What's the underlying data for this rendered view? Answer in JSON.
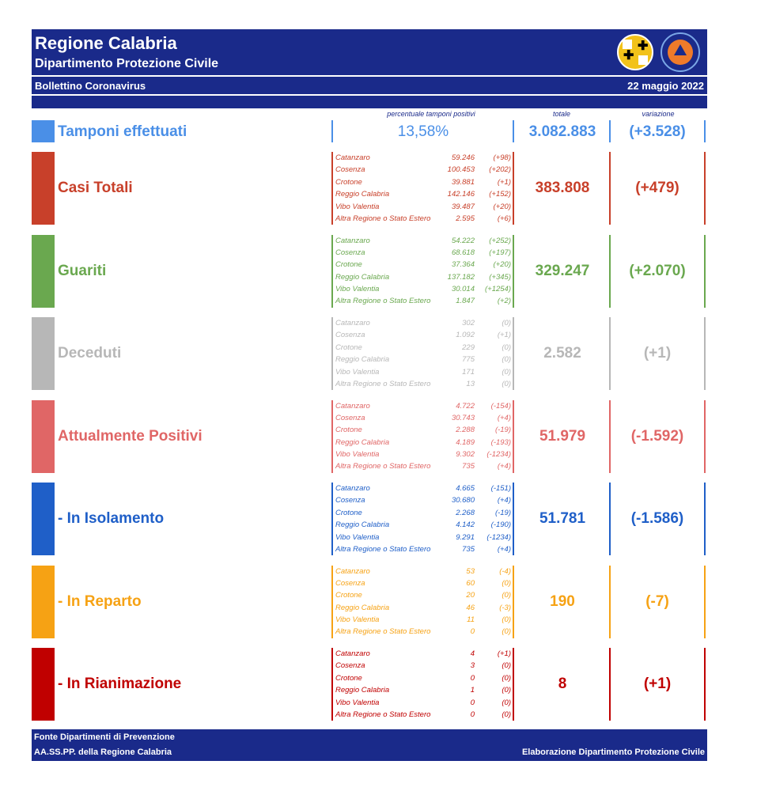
{
  "header": {
    "title": "Regione Calabria",
    "subtitle": "Dipartimento Protezione Civile",
    "bulletin": "Bollettino Coronavirus",
    "date": "22 maggio 2022"
  },
  "columns": {
    "percent": "percentuale tamponi positivi",
    "total": "totale",
    "variation": "variazione"
  },
  "colors": {
    "brand": "#1a2a8a",
    "tamponi": "#4a8fe7",
    "casi": "#c8402a",
    "guariti": "#6aa84f",
    "deceduti": "#b7b7b7",
    "positivi": "#e06666",
    "isolamento": "#1f5fc8",
    "reparto": "#f6a214",
    "rianimazione": "#c00000"
  },
  "tamponi": {
    "label": "Tamponi effettuati",
    "percent": "13,58%",
    "total": "3.082.883",
    "variation": "(+3.528)"
  },
  "sections": [
    {
      "label": "Casi Totali",
      "total": "383.808",
      "variation": "(+479)",
      "rows": [
        {
          "name": "Catanzaro",
          "value": "59.246",
          "delta": "(+98)"
        },
        {
          "name": "Cosenza",
          "value": "100.453",
          "delta": "(+202)"
        },
        {
          "name": "Crotone",
          "value": "39.881",
          "delta": "(+1)"
        },
        {
          "name": "Reggio Calabria",
          "value": "142.146",
          "delta": "(+152)"
        },
        {
          "name": "Vibo Valentia",
          "value": "39.487",
          "delta": "(+20)"
        },
        {
          "name": "Altra Regione o Stato Estero",
          "value": "2.595",
          "delta": "(+6)"
        }
      ]
    },
    {
      "label": "Guariti",
      "total": "329.247",
      "variation": "(+2.070)",
      "rows": [
        {
          "name": "Catanzaro",
          "value": "54.222",
          "delta": "(+252)"
        },
        {
          "name": "Cosenza",
          "value": "68.618",
          "delta": "(+197)"
        },
        {
          "name": "Crotone",
          "value": "37.364",
          "delta": "(+20)"
        },
        {
          "name": "Reggio Calabria",
          "value": "137.182",
          "delta": "(+345)"
        },
        {
          "name": "Vibo Valentia",
          "value": "30.014",
          "delta": "(+1254)"
        },
        {
          "name": "Altra Regione o Stato Estero",
          "value": "1.847",
          "delta": "(+2)"
        }
      ]
    },
    {
      "label": "Deceduti",
      "total": "2.582",
      "variation": "(+1)",
      "rows": [
        {
          "name": "Catanzaro",
          "value": "302",
          "delta": "(0)"
        },
        {
          "name": "Cosenza",
          "value": "1.092",
          "delta": "(+1)"
        },
        {
          "name": "Crotone",
          "value": "229",
          "delta": "(0)"
        },
        {
          "name": "Reggio Calabria",
          "value": "775",
          "delta": "(0)"
        },
        {
          "name": "Vibo Valentia",
          "value": "171",
          "delta": "(0)"
        },
        {
          "name": "Altra Regione o Stato Estero",
          "value": "13",
          "delta": "(0)"
        }
      ]
    },
    {
      "label": "Attualmente Positivi",
      "total": "51.979",
      "variation": "(-1.592)",
      "rows": [
        {
          "name": "Catanzaro",
          "value": "4.722",
          "delta": "(-154)"
        },
        {
          "name": "Cosenza",
          "value": "30.743",
          "delta": "(+4)"
        },
        {
          "name": "Crotone",
          "value": "2.288",
          "delta": "(-19)"
        },
        {
          "name": "Reggio Calabria",
          "value": "4.189",
          "delta": "(-193)"
        },
        {
          "name": "Vibo Valentia",
          "value": "9.302",
          "delta": "(-1234)"
        },
        {
          "name": "Altra Regione o Stato Estero",
          "value": "735",
          "delta": "(+4)"
        }
      ]
    },
    {
      "label": "- In Isolamento",
      "total": "51.781",
      "variation": "(-1.586)",
      "rows": [
        {
          "name": "Catanzaro",
          "value": "4.665",
          "delta": "(-151)"
        },
        {
          "name": "Cosenza",
          "value": "30.680",
          "delta": "(+4)"
        },
        {
          "name": "Crotone",
          "value": "2.268",
          "delta": "(-19)"
        },
        {
          "name": "Reggio Calabria",
          "value": "4.142",
          "delta": "(-190)"
        },
        {
          "name": "Vibo Valentia",
          "value": "9.291",
          "delta": "(-1234)"
        },
        {
          "name": "Altra Regione o Stato Estero",
          "value": "735",
          "delta": "(+4)"
        }
      ]
    },
    {
      "label": "- In Reparto",
      "total": "190",
      "variation": "(-7)",
      "rows": [
        {
          "name": "Catanzaro",
          "value": "53",
          "delta": "(-4)"
        },
        {
          "name": "Cosenza",
          "value": "60",
          "delta": "(0)"
        },
        {
          "name": "Crotone",
          "value": "20",
          "delta": "(0)"
        },
        {
          "name": "Reggio Calabria",
          "value": "46",
          "delta": "(-3)"
        },
        {
          "name": "Vibo Valentia",
          "value": "11",
          "delta": "(0)"
        },
        {
          "name": "Altra Regione o Stato Estero",
          "value": "0",
          "delta": "(0)"
        }
      ]
    },
    {
      "label": "- In Rianimazione",
      "total": "8",
      "variation": "(+1)",
      "rows": [
        {
          "name": "Catanzaro",
          "value": "4",
          "delta": "(+1)"
        },
        {
          "name": "Cosenza",
          "value": "3",
          "delta": "(0)"
        },
        {
          "name": "Crotone",
          "value": "0",
          "delta": "(0)"
        },
        {
          "name": "Reggio Calabria",
          "value": "1",
          "delta": "(0)"
        },
        {
          "name": "Vibo Valentia",
          "value": "0",
          "delta": "(0)"
        },
        {
          "name": "Altra Regione o Stato Estero",
          "value": "0",
          "delta": "(0)"
        }
      ]
    }
  ],
  "footer": {
    "source_line1": "Fonte Dipartimenti di Prevenzione",
    "source_line2": "AA.SS.PP.  della Regione Calabria",
    "elaboration": "Elaborazione Dipartimento Protezione Civile"
  }
}
